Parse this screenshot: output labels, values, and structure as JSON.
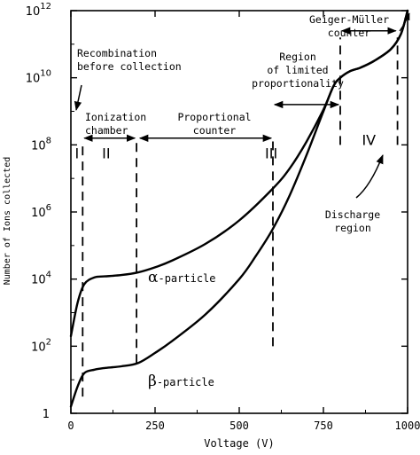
{
  "chart_data": {
    "type": "line",
    "xlabel": "Voltage (V)",
    "ylabel": "Number of Ions collected",
    "xlim": [
      0,
      1000
    ],
    "ylim_exponent": [
      0,
      12
    ],
    "y_scale": "log",
    "grid": false,
    "x_ticks": [
      {
        "value": 0,
        "label": "0"
      },
      {
        "value": 250,
        "label": "250"
      },
      {
        "value": 500,
        "label": "500"
      },
      {
        "value": 750,
        "label": "750"
      },
      {
        "value": 1000,
        "label": "1000"
      }
    ],
    "y_ticks": [
      {
        "exp": 0,
        "base": "1",
        "sup": ""
      },
      {
        "exp": 2,
        "base": "10",
        "sup": "2"
      },
      {
        "exp": 4,
        "base": "10",
        "sup": "4"
      },
      {
        "exp": 6,
        "base": "10",
        "sup": "6"
      },
      {
        "exp": 8,
        "base": "10",
        "sup": "8"
      },
      {
        "exp": 10,
        "base": "10",
        "sup": "10"
      },
      {
        "exp": 12,
        "base": "10",
        "sup": "12"
      }
    ],
    "series": [
      {
        "name": "α-particle",
        "greek": "α",
        "suffix": "-particle",
        "x": [
          0,
          20,
          40,
          70,
          100,
          150,
          200,
          250,
          300,
          400,
          500,
          600,
          650,
          700,
          750,
          780,
          800,
          830,
          860,
          900,
          950,
          980,
          1000
        ],
        "log10_y": [
          2.3,
          3.3,
          3.85,
          4.05,
          4.08,
          4.12,
          4.2,
          4.35,
          4.55,
          5.05,
          5.75,
          6.7,
          7.3,
          8.1,
          9.05,
          9.75,
          10.0,
          10.2,
          10.3,
          10.5,
          10.85,
          11.3,
          12.0
        ]
      },
      {
        "name": "β-particle",
        "greek": "β",
        "suffix": "-particle",
        "x": [
          0,
          20,
          40,
          70,
          100,
          150,
          200,
          250,
          300,
          400,
          500,
          550,
          600,
          650,
          700,
          750,
          780,
          800,
          830,
          860,
          900,
          950,
          980,
          1000
        ],
        "log10_y": [
          0.2,
          0.8,
          1.2,
          1.3,
          1.35,
          1.4,
          1.5,
          1.8,
          2.15,
          2.95,
          4.0,
          4.7,
          5.5,
          6.5,
          7.7,
          9.0,
          9.75,
          10.0,
          10.2,
          10.3,
          10.5,
          10.85,
          11.3,
          12.0
        ]
      }
    ],
    "boundaries": [
      {
        "x": 35,
        "y_exp": [
          0.5,
          8.1
        ]
      },
      {
        "x": 195,
        "y_exp": [
          1.5,
          8.1
        ]
      },
      {
        "x": 600,
        "y_exp": [
          2.0,
          8.1
        ]
      },
      {
        "x": 800,
        "y_exp": [
          8.0,
          11.2
        ]
      },
      {
        "x": 970,
        "y_exp": [
          8.0,
          11.2
        ]
      }
    ],
    "regions": [
      {
        "label": "I",
        "x": 18,
        "y_exp": 7.6
      },
      {
        "label": "II",
        "x": 105,
        "y_exp": 7.6
      },
      {
        "label": "III",
        "x": 595,
        "y_exp": 7.6
      },
      {
        "label": "IV",
        "x": 885,
        "y_exp": 8.0
      }
    ],
    "annotations": {
      "recombination": [
        "Recombination",
        "before collection"
      ],
      "ionization": [
        "Ionization",
        "chamber"
      ],
      "proportional": [
        "Proportional",
        "counter"
      ],
      "limited": [
        "Region",
        "of limited",
        "proportionality"
      ],
      "geiger": [
        "Geiger-Müller",
        "counter"
      ],
      "discharge": [
        "Discharge",
        "region"
      ]
    }
  }
}
